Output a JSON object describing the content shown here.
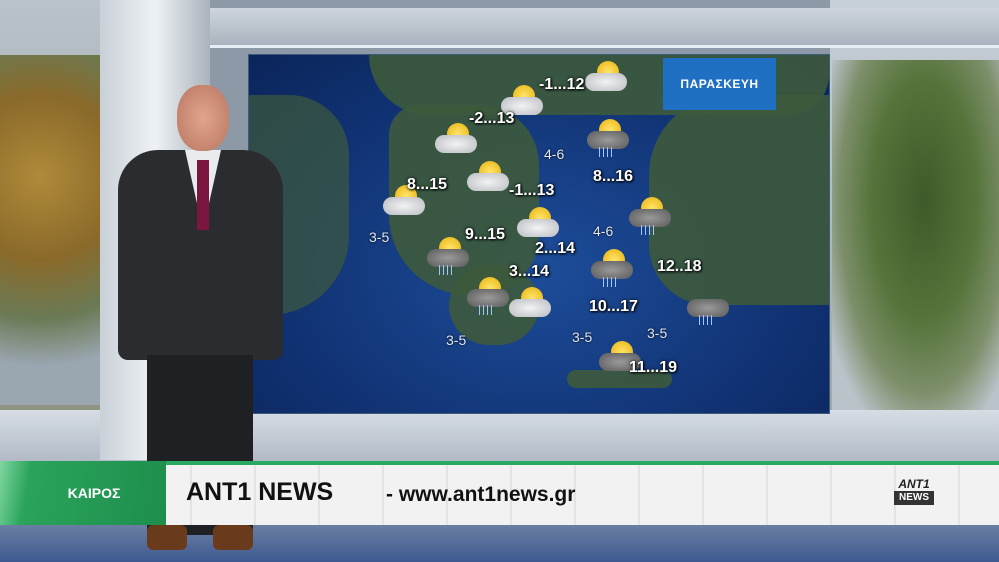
{
  "map": {
    "day_label": "ΠΑΡΑΣΚΕΥΗ",
    "temperatures": [
      "-1...12",
      "-2...13",
      "8...15",
      "-1...13",
      "9...15",
      "2...14",
      "3...14",
      "8...16",
      "12..18",
      "10...17",
      "11...19"
    ],
    "wind": [
      "4-6",
      "4-6",
      "3-5",
      "3-5",
      "3-5",
      "3-5"
    ],
    "icons": [
      "sun-cloud-icon",
      "sun-cloud-icon",
      "sun-cloud-icon",
      "sun-cloud-icon",
      "sun-cloud-icon",
      "sun-cloud-icon",
      "storm-rain-icon",
      "storm-rain-icon",
      "sun-cloud-icon",
      "storm-rain-icon",
      "storm-rain-icon",
      "storm-rain-icon",
      "storm-icon",
      "storm-icon"
    ]
  },
  "ticker": {
    "section_label": "ΚΑΙΡΟΣ",
    "brand": "ANT1 NEWS",
    "url": "- www.ant1news.gr",
    "logo_top": "ANT1",
    "logo_bottom": "NEWS"
  },
  "colors": {
    "ticker_green": "#28a860",
    "day_box_blue": "#1f6fc2",
    "sea_blue": "#1d4d9a"
  }
}
